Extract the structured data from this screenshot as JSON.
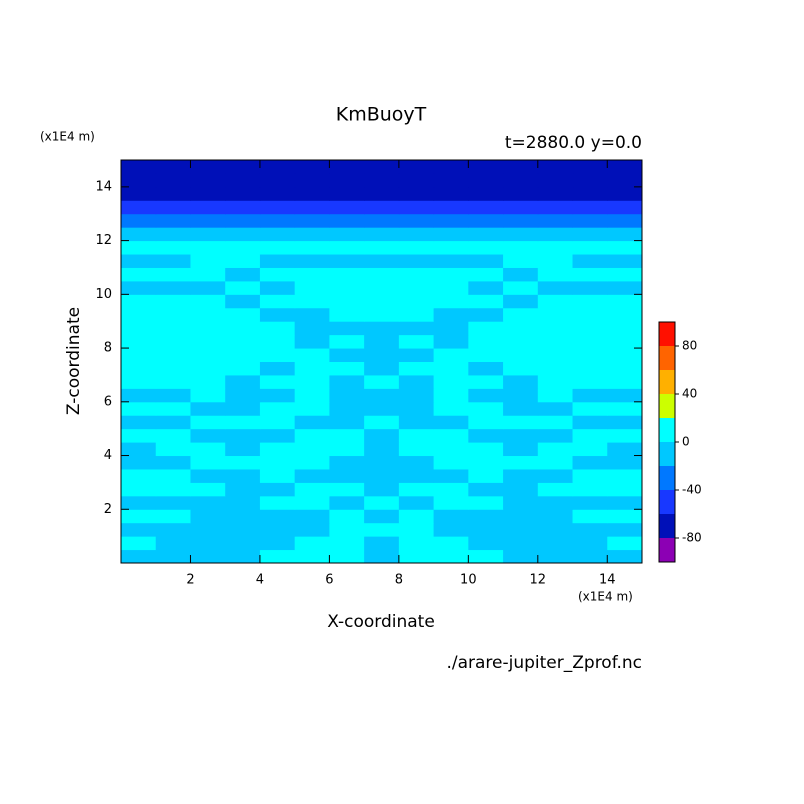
{
  "chart_data": {
    "type": "contour",
    "title": "KmBuoyT",
    "subtitle": "t=2880.0 y=0.0",
    "xlabel": "X-coordinate",
    "ylabel": "Z-coordinate",
    "x_unit": "(x1E4 m)",
    "y_unit": "(x1E4 m)",
    "source": "./arare-jupiter_Zprof.nc",
    "xlim": [
      0,
      15
    ],
    "ylim": [
      0,
      15
    ],
    "xticks": [
      2,
      4,
      6,
      8,
      10,
      12,
      14
    ],
    "yticks": [
      2,
      4,
      6,
      8,
      10,
      12,
      14
    ],
    "x": [
      0.5,
      1.5,
      2.5,
      3.5,
      4.5,
      5.5,
      6.5,
      7.5,
      8.5,
      9.5,
      10.5,
      11.5,
      12.5,
      13.5,
      14.5
    ],
    "y": [
      0.25,
      0.75,
      1.25,
      1.75,
      2.25,
      2.75,
      3.25,
      3.75,
      4.25,
      4.75,
      5.25,
      5.75,
      6.25,
      6.75,
      7.25,
      7.75,
      8.25,
      8.75,
      9.25,
      9.75,
      10.25,
      10.75,
      11.25,
      11.75,
      12.25,
      12.75,
      13.25,
      13.75,
      14.25,
      14.75
    ],
    "z": [
      [
        -10,
        -10,
        -10,
        -10,
        10,
        10,
        10,
        -10,
        10,
        10,
        10,
        -10,
        -10,
        -10,
        -10
      ],
      [
        10,
        -10,
        -10,
        -10,
        -10,
        10,
        10,
        -10,
        10,
        10,
        -10,
        -10,
        -10,
        -10,
        10
      ],
      [
        -10,
        -10,
        -10,
        -10,
        -10,
        -10,
        10,
        10,
        10,
        -10,
        -10,
        -10,
        -10,
        -10,
        -10
      ],
      [
        10,
        10,
        -10,
        -10,
        -10,
        -10,
        10,
        -10,
        10,
        -10,
        -10,
        -10,
        -10,
        10,
        10
      ],
      [
        -10,
        -10,
        -10,
        -10,
        10,
        10,
        -10,
        10,
        -10,
        10,
        10,
        -10,
        -10,
        -10,
        -10
      ],
      [
        10,
        10,
        10,
        -10,
        -10,
        10,
        10,
        -10,
        10,
        10,
        -10,
        -10,
        10,
        10,
        10
      ],
      [
        10,
        10,
        -10,
        -10,
        10,
        -10,
        -10,
        -10,
        -10,
        -10,
        10,
        -10,
        -10,
        10,
        10
      ],
      [
        -10,
        -10,
        10,
        10,
        10,
        10,
        -10,
        -10,
        -10,
        10,
        10,
        10,
        10,
        -10,
        -10
      ],
      [
        -10,
        10,
        10,
        -10,
        10,
        10,
        10,
        -10,
        10,
        10,
        10,
        -10,
        10,
        10,
        -10
      ],
      [
        10,
        10,
        -10,
        -10,
        -10,
        10,
        10,
        -10,
        10,
        10,
        -10,
        -10,
        -10,
        10,
        10
      ],
      [
        -10,
        -10,
        10,
        10,
        10,
        -10,
        -10,
        10,
        -10,
        -10,
        10,
        10,
        10,
        -10,
        -10
      ],
      [
        10,
        10,
        -10,
        -10,
        10,
        10,
        -10,
        -10,
        -10,
        10,
        10,
        -10,
        -10,
        10,
        10
      ],
      [
        -10,
        -10,
        10,
        -10,
        -10,
        10,
        -10,
        -10,
        -10,
        10,
        -10,
        -10,
        10,
        -10,
        -10
      ],
      [
        10,
        10,
        10,
        -10,
        10,
        10,
        -10,
        10,
        -10,
        10,
        10,
        -10,
        10,
        10,
        10
      ],
      [
        10,
        10,
        10,
        10,
        -10,
        10,
        10,
        -10,
        10,
        10,
        -10,
        10,
        10,
        10,
        10
      ],
      [
        10,
        10,
        10,
        10,
        10,
        10,
        -10,
        -10,
        -10,
        10,
        10,
        10,
        10,
        10,
        10
      ],
      [
        10,
        10,
        10,
        10,
        10,
        -10,
        10,
        -10,
        10,
        -10,
        10,
        10,
        10,
        10,
        10
      ],
      [
        10,
        10,
        10,
        10,
        10,
        -10,
        -10,
        -10,
        -10,
        -10,
        10,
        10,
        10,
        10,
        10
      ],
      [
        10,
        10,
        10,
        10,
        -10,
        -10,
        10,
        10,
        10,
        -10,
        -10,
        10,
        10,
        10,
        10
      ],
      [
        10,
        10,
        10,
        -10,
        10,
        10,
        10,
        10,
        10,
        10,
        10,
        -10,
        10,
        10,
        10
      ],
      [
        -10,
        -10,
        -10,
        10,
        -10,
        10,
        10,
        10,
        10,
        10,
        -10,
        10,
        -10,
        -10,
        -10
      ],
      [
        10,
        10,
        10,
        -10,
        10,
        10,
        10,
        10,
        10,
        10,
        10,
        -10,
        10,
        10,
        10
      ],
      [
        -10,
        -10,
        10,
        10,
        -10,
        -10,
        -10,
        -10,
        -10,
        -10,
        -10,
        10,
        10,
        -10,
        -10
      ],
      [
        10,
        10,
        10,
        10,
        10,
        10,
        10,
        10,
        10,
        10,
        10,
        10,
        10,
        10,
        10
      ],
      [
        -10,
        -10,
        -10,
        -10,
        -10,
        -10,
        -10,
        -10,
        -10,
        -10,
        -10,
        -10,
        -10,
        -10,
        -10
      ],
      [
        -30,
        -30,
        -30,
        -30,
        -30,
        -30,
        -30,
        -30,
        -30,
        -30,
        -30,
        -30,
        -30,
        -30,
        -30
      ],
      [
        -50,
        -50,
        -50,
        -50,
        -50,
        -50,
        -50,
        -50,
        -50,
        -50,
        -50,
        -50,
        -50,
        -50,
        -50
      ],
      [
        -70,
        -70,
        -70,
        -70,
        -70,
        -70,
        -70,
        -70,
        -70,
        -70,
        -70,
        -70,
        -70,
        -70,
        -70
      ],
      [
        -70,
        -70,
        -70,
        -70,
        -70,
        -70,
        -70,
        -70,
        -70,
        -70,
        -70,
        -70,
        -70,
        -70,
        -70
      ],
      [
        -70,
        -70,
        -70,
        -70,
        -70,
        -70,
        -70,
        -70,
        -70,
        -70,
        -70,
        -70,
        -70,
        -70,
        -70
      ]
    ],
    "levels": [
      -100,
      -80,
      -60,
      -40,
      -20,
      0,
      20,
      40,
      60,
      80,
      100
    ],
    "colors": [
      "#8c00b4",
      "#0010b8",
      "#1838ff",
      "#0078ff",
      "#00c8ff",
      "#00ffff",
      "#ccff00",
      "#ffb000",
      "#ff6400",
      "#ff1000",
      "#ffb0b0"
    ],
    "clim": [
      -100,
      100
    ],
    "cticks": [
      -80,
      -40,
      0,
      40,
      80
    ]
  }
}
